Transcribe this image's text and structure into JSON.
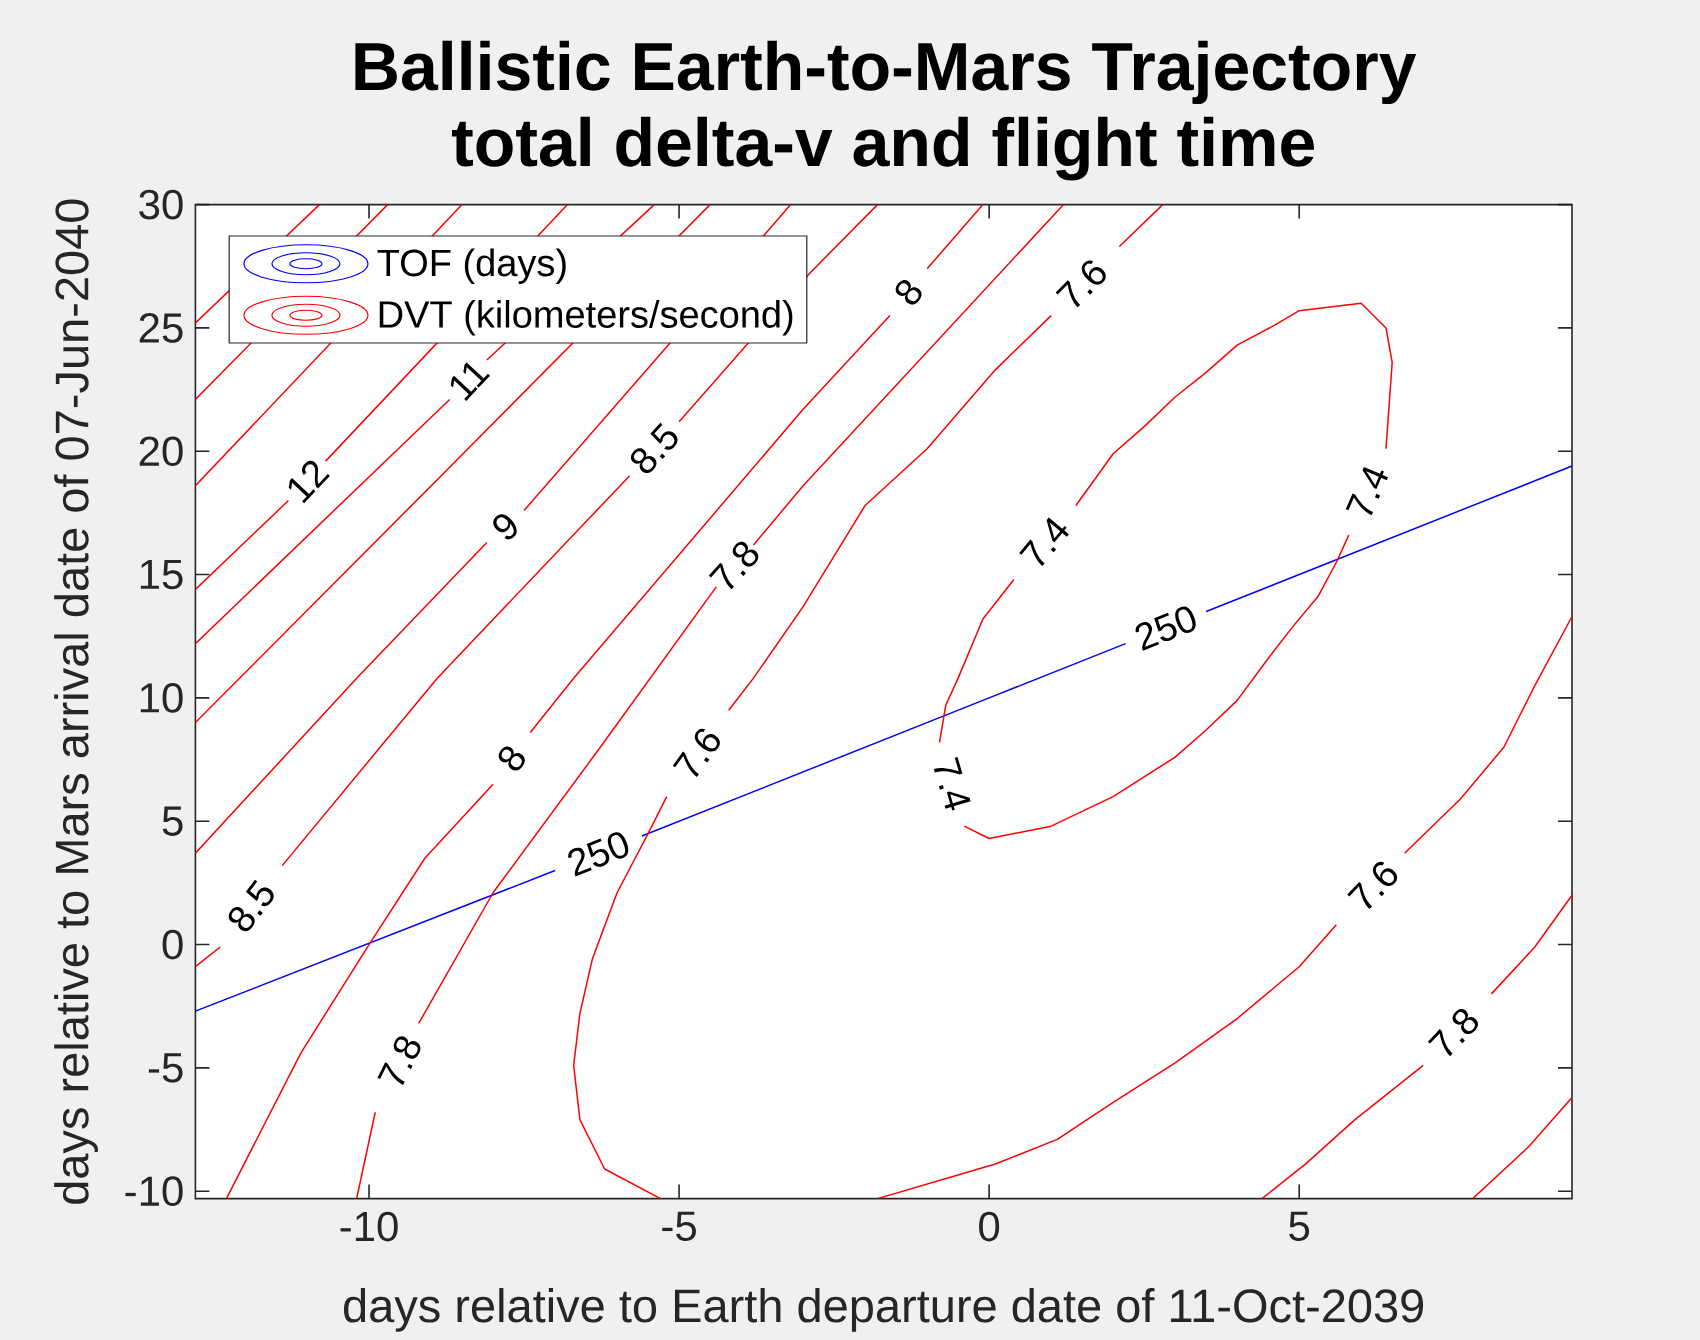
{
  "chart_data": {
    "type": "line",
    "title": "Ballistic Earth-to-Mars Trajectory",
    "subtitle": "total delta-v and flight time",
    "xlabel": "days relative to Earth departure date of 11-Oct-2039",
    "ylabel": "days relative to Mars arrival date of 07-Jun-2040",
    "xlim": [
      -12.8,
      9.4
    ],
    "ylim": [
      -10.3,
      30
    ],
    "xticks": [
      -10,
      -5,
      0,
      5
    ],
    "yticks": [
      -10,
      -5,
      0,
      5,
      10,
      15,
      20,
      25,
      30
    ],
    "legend": "top left",
    "series": [
      {
        "name": "TOF (days)",
        "color": "#0000ff",
        "x": [
          -12.8,
          -7.0,
          -6.3,
          -5.6,
          0.0,
          2.2,
          2.85,
          3.5,
          9.4
        ],
        "values": [
          -2.7,
          3.0,
          null,
          4.4,
          10.0,
          12.2,
          null,
          13.5,
          19.4
        ]
      },
      {
        "name": "DVT (kilometers/second)",
        "color": "#ff0000",
        "x": [
          1.0,
          0.0,
          -0.4,
          -0.6,
          -0.8,
          -0.7,
          -0.5,
          -0.1,
          0.4,
          0.9,
          1.4,
          2.0,
          2.5,
          3.0,
          3.5,
          4.0,
          4.6,
          5.0,
          6.0,
          6.4,
          6.5,
          6.4,
          6.1,
          5.8,
          5.6,
          5.3,
          4.9,
          4.5,
          4.0,
          3.5,
          3.0,
          2.0,
          1.0
        ],
        "values": [
          4.8,
          4.3,
          4.8,
          null,
          8.2,
          9.7,
          10.8,
          13.2,
          14.8,
          null,
          17.8,
          19.9,
          21.0,
          22.2,
          23.2,
          24.3,
          25.1,
          25.7,
          26.0,
          25.0,
          23.6,
          20.1,
          null,
          16.6,
          15.5,
          14.1,
          12.9,
          11.6,
          9.9,
          8.7,
          7.6,
          6.0,
          4.8
        ]
      },
      {
        "color": "#ff0000",
        "x": [
          -5.3,
          -6.2,
          -6.6,
          -6.7,
          -6.6,
          -6.4,
          -6.0,
          -5.5,
          -5.2,
          -4.7,
          -4.2,
          -3.8,
          -3.0,
          -2.0,
          -1.0,
          0.1,
          1.0,
          1.5,
          2.1,
          2.8
        ],
        "values": [
          -10.3,
          -9.1,
          -7.1,
          -4.9,
          -2.8,
          -0.6,
          2.1,
          4.5,
          6.0,
          null,
          9.5,
          10.8,
          13.7,
          17.8,
          20.1,
          23.3,
          25.5,
          null,
          28.3,
          30.0
        ]
      },
      {
        "color": "#ff0000",
        "x": [
          -1.8,
          0.1,
          1.1,
          2.0,
          3.0,
          4.0,
          5.0,
          5.6,
          6.2,
          6.7,
          7.6,
          8.3,
          8.8,
          9.4
        ],
        "values": [
          -10.3,
          -8.9,
          -7.9,
          -6.4,
          -4.8,
          -3.0,
          -0.9,
          0.8,
          null,
          3.7,
          5.9,
          8.0,
          10.5,
          13.3
        ]
      },
      {
        "color": "#ff0000",
        "x": [
          -10.2,
          -9.9,
          -9.5,
          -9.2,
          -8.0,
          -6.3,
          -4.4,
          -4.1,
          -3.8,
          -3.0,
          1.2
        ],
        "values": [
          -10.3,
          -6.8,
          null,
          -3.2,
          2.1,
          7.9,
          14.5,
          null,
          16.2,
          18.6,
          30.0
        ]
      },
      {
        "color": "#ff0000",
        "x": [
          4.4,
          5.1,
          5.9,
          7.0,
          7.5,
          8.1,
          8.8,
          9.4
        ],
        "values": [
          -10.3,
          -8.9,
          -7.1,
          -4.9,
          null,
          -2.0,
          -0.1,
          2.0
        ]
      },
      {
        "color": "#ff0000",
        "x": [
          -12.3,
          -11.1,
          -10.0,
          -9.1,
          -8.0,
          -7.7,
          -7.4,
          -6.7,
          -3.0,
          -1.6,
          -1.3,
          -1.0,
          -0.1
        ],
        "values": [
          -10.3,
          -4.4,
          0.0,
          3.5,
          6.5,
          null,
          8.6,
          10.8,
          21.7,
          25.5,
          null,
          27.4,
          30.0
        ]
      },
      {
        "color": "#ff0000",
        "x": [
          7.8,
          8.7,
          9.4
        ],
        "values": [
          -10.3,
          -8.2,
          -6.2
        ]
      },
      {
        "color": "#ff0000",
        "x": [
          -12.8,
          -12.4,
          -11.9,
          -11.4,
          -8.9,
          -5.8,
          -5.4,
          -5.0,
          -2.9,
          -1.8
        ],
        "values": [
          -0.9,
          -0.1,
          null,
          3.2,
          10.8,
          19.0,
          null,
          21.2,
          27.2,
          30.0
        ]
      },
      {
        "color": "#ff0000",
        "x": [
          -12.8,
          -10.2,
          -8.1,
          -7.8,
          -7.5,
          -3.2
        ],
        "values": [
          3.7,
          10.8,
          16.3,
          null,
          17.6,
          30.0
        ]
      },
      {
        "color": "#ff0000",
        "x": [
          -12.8,
          -8.8,
          -4.5
        ],
        "values": [
          9.0,
          19.1,
          30.0
        ]
      },
      {
        "color": "#ff0000",
        "x": [
          -12.8,
          -8.7,
          -8.4,
          -8.1,
          -5.4
        ],
        "values": [
          12.2,
          22.1,
          null,
          23.7,
          30.0
        ]
      },
      {
        "color": "#ff0000",
        "x": [
          -12.8,
          -11.3,
          -11.0,
          -10.7,
          -6.8
        ],
        "values": [
          14.4,
          18.0,
          null,
          19.6,
          30.0
        ]
      },
      {
        "color": "#ff0000",
        "x": [
          -12.8,
          -8.5
        ],
        "values": [
          18.6,
          30.0
        ]
      },
      {
        "color": "#ff0000",
        "x": [
          -12.8,
          -9.7
        ],
        "values": [
          22.1,
          30.0
        ]
      },
      {
        "color": "#ff0000",
        "x": [
          -12.8,
          -10.8
        ],
        "values": [
          25.2,
          30.0
        ]
      }
    ],
    "annotations": [
      "250",
      "250",
      "7.4",
      "7.4",
      "7.4",
      "7.6",
      "7.6",
      "7.6",
      "7.8",
      "7.8",
      "7.8",
      "8",
      "8",
      "8.5",
      "8.5",
      "9",
      "11",
      "12"
    ]
  }
}
